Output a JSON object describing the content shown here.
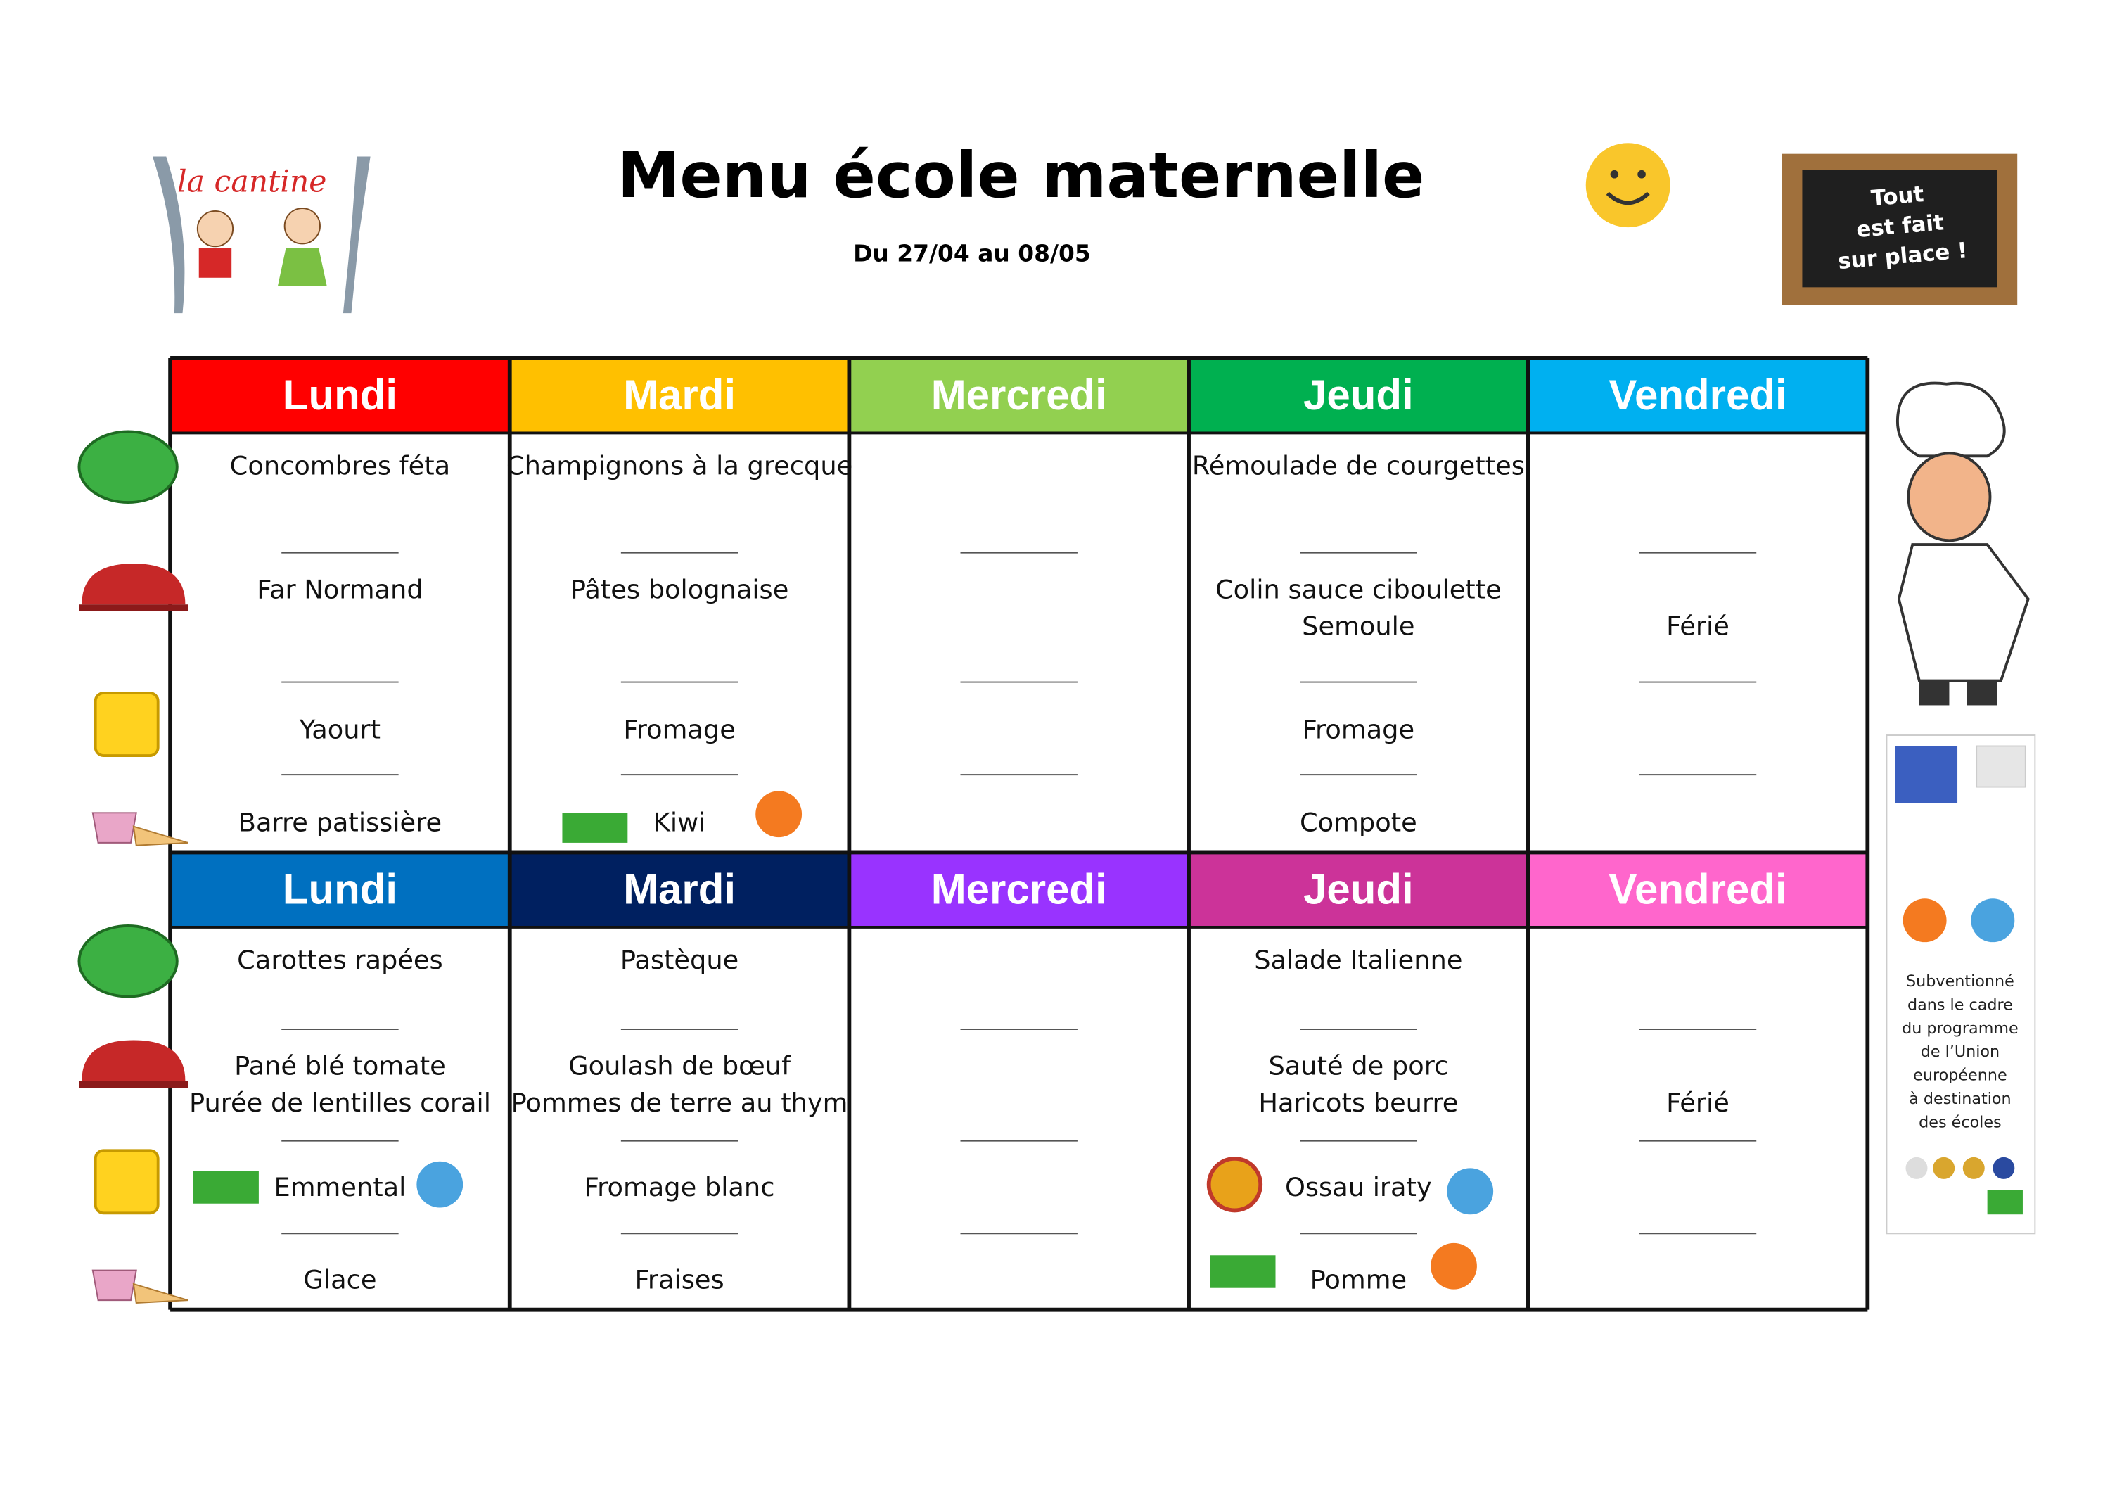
{
  "header": {
    "title": "Menu école maternelle",
    "subtitle": "Du 27/04 au 08/05",
    "logo": "la cantine",
    "board": [
      "Tout",
      "est fait",
      "sur place !"
    ]
  },
  "weeks": [
    {
      "days": [
        {
          "name": "Lundi",
          "color": "#ff0000",
          "courses": [
            [
              "Concombres féta"
            ],
            [
              "Far Normand"
            ],
            [
              "Yaourt"
            ],
            [
              "Barre patissière"
            ]
          ]
        },
        {
          "name": "Mardi",
          "color": "#ffc000",
          "courses": [
            [
              "Champignons à la grecque"
            ],
            [
              "Pâtes bolognaise"
            ],
            [
              "Fromage"
            ],
            [
              "Kiwi"
            ]
          ]
        },
        {
          "name": "Mercredi",
          "color": "#92d050",
          "courses": [
            [],
            [],
            [],
            []
          ]
        },
        {
          "name": "Jeudi",
          "color": "#00b050",
          "courses": [
            [
              "Rémoulade de courgettes"
            ],
            [
              "Colin sauce ciboulette",
              "Semoule"
            ],
            [
              "Fromage"
            ],
            [
              "Compote"
            ]
          ]
        },
        {
          "name": "Vendredi",
          "color": "#00b0f0",
          "courses": [
            [],
            [
              "Férié"
            ],
            [],
            []
          ]
        }
      ]
    },
    {
      "days": [
        {
          "name": "Lundi",
          "color": "#0070c0",
          "courses": [
            [
              "Carottes rapées"
            ],
            [
              "Pané blé tomate",
              "Purée de lentilles corail"
            ],
            [
              "Emmental"
            ],
            [
              "Glace"
            ]
          ]
        },
        {
          "name": "Mardi",
          "color": "#002060",
          "courses": [
            [
              "Pastèque"
            ],
            [
              "Goulash de bœuf",
              "Pommes de terre au thym"
            ],
            [
              "Fromage blanc"
            ],
            [
              "Fraises"
            ]
          ]
        },
        {
          "name": "Mercredi",
          "color": "#9933ff",
          "courses": [
            [],
            [],
            [],
            []
          ]
        },
        {
          "name": "Jeudi",
          "color": "#cc3399",
          "courses": [
            [
              "Salade Italienne"
            ],
            [
              "Sauté de porc",
              "Haricots beurre"
            ],
            [
              "Ossau iraty"
            ],
            [
              "Pomme"
            ]
          ]
        },
        {
          "name": "Vendredi",
          "color": "#ff66cc",
          "courses": [
            [],
            [
              "Férié"
            ],
            [],
            []
          ]
        }
      ]
    }
  ],
  "sidebar": {
    "lines": [
      "Subventionné",
      "dans le cadre",
      "du programme",
      "de l’Union",
      "européenne",
      "à destination",
      "des écoles"
    ]
  }
}
